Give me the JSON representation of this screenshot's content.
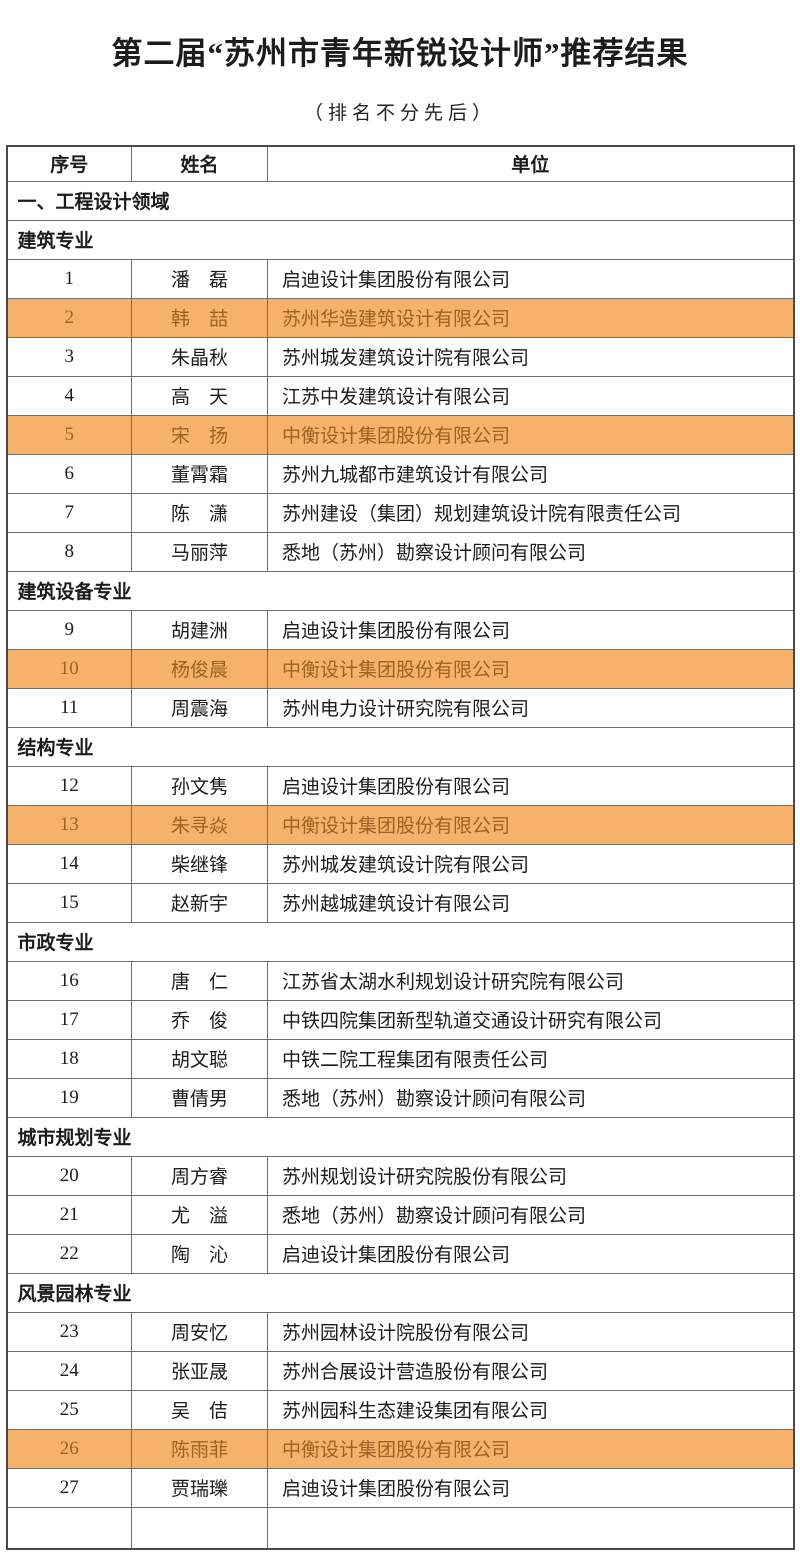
{
  "page": {
    "title": "第二届“苏州市青年新锐设计师”推荐结果",
    "subtitle": "（排名不分先后）"
  },
  "colors": {
    "highlight_bg": "#F6B26B",
    "highlight_text": "#9e6225",
    "border": "#6e6e6e",
    "outer_border": "#4a4a4a"
  },
  "table": {
    "headers": [
      "序号",
      "姓名",
      "单位"
    ],
    "rows": [
      {
        "kind": "section",
        "level": "category",
        "label": "一、工程设计领域"
      },
      {
        "kind": "section",
        "level": "group",
        "label": "建筑专业"
      },
      {
        "kind": "data",
        "no": "1",
        "name": "潘　磊",
        "org": "启迪设计集团股份有限公司",
        "highlight": false
      },
      {
        "kind": "data",
        "no": "2",
        "name": "韩　喆",
        "org": "苏州华造建筑设计有限公司",
        "highlight": true
      },
      {
        "kind": "data",
        "no": "3",
        "name": "朱晶秋",
        "org": "苏州城发建筑设计院有限公司",
        "highlight": false
      },
      {
        "kind": "data",
        "no": "4",
        "name": "高　天",
        "org": "江苏中发建筑设计有限公司",
        "highlight": false
      },
      {
        "kind": "data",
        "no": "5",
        "name": "宋　扬",
        "org": "中衡设计集团股份有限公司",
        "highlight": true
      },
      {
        "kind": "data",
        "no": "6",
        "name": "董霄霜",
        "org": "苏州九城都市建筑设计有限公司",
        "highlight": false
      },
      {
        "kind": "data",
        "no": "7",
        "name": "陈　潇",
        "org": "苏州建设（集团）规划建筑设计院有限责任公司",
        "highlight": false
      },
      {
        "kind": "data",
        "no": "8",
        "name": "马丽萍",
        "org": "悉地（苏州）勘察设计顾问有限公司",
        "highlight": false
      },
      {
        "kind": "section",
        "level": "group",
        "label": "建筑设备专业"
      },
      {
        "kind": "data",
        "no": "9",
        "name": "胡建洲",
        "org": "启迪设计集团股份有限公司",
        "highlight": false
      },
      {
        "kind": "data",
        "no": "10",
        "name": "杨俊晨",
        "org": "中衡设计集团股份有限公司",
        "highlight": true
      },
      {
        "kind": "data",
        "no": "11",
        "name": "周震海",
        "org": "苏州电力设计研究院有限公司",
        "highlight": false
      },
      {
        "kind": "section",
        "level": "group",
        "label": "结构专业"
      },
      {
        "kind": "data",
        "no": "12",
        "name": "孙文隽",
        "org": "启迪设计集团股份有限公司",
        "highlight": false
      },
      {
        "kind": "data",
        "no": "13",
        "name": "朱寻焱",
        "org": "中衡设计集团股份有限公司",
        "highlight": true
      },
      {
        "kind": "data",
        "no": "14",
        "name": "柴继锋",
        "org": "苏州城发建筑设计院有限公司",
        "highlight": false
      },
      {
        "kind": "data",
        "no": "15",
        "name": "赵新宇",
        "org": "苏州越城建筑设计有限公司",
        "highlight": false
      },
      {
        "kind": "section",
        "level": "group",
        "label": "市政专业"
      },
      {
        "kind": "data",
        "no": "16",
        "name": "唐　仁",
        "org": "江苏省太湖水利规划设计研究院有限公司",
        "highlight": false
      },
      {
        "kind": "data",
        "no": "17",
        "name": "乔　俊",
        "org": "中铁四院集团新型轨道交通设计研究有限公司",
        "highlight": false
      },
      {
        "kind": "data",
        "no": "18",
        "name": "胡文聪",
        "org": "中铁二院工程集团有限责任公司",
        "highlight": false
      },
      {
        "kind": "data",
        "no": "19",
        "name": "曹倩男",
        "org": "悉地（苏州）勘察设计顾问有限公司",
        "highlight": false
      },
      {
        "kind": "section",
        "level": "group",
        "label": "城市规划专业"
      },
      {
        "kind": "data",
        "no": "20",
        "name": "周方睿",
        "org": "苏州规划设计研究院股份有限公司",
        "highlight": false
      },
      {
        "kind": "data",
        "no": "21",
        "name": "尤　溢",
        "org": "悉地（苏州）勘察设计顾问有限公司",
        "highlight": false
      },
      {
        "kind": "data",
        "no": "22",
        "name": "陶　沁",
        "org": "启迪设计集团股份有限公司",
        "highlight": false
      },
      {
        "kind": "section",
        "level": "group",
        "label": "风景园林专业"
      },
      {
        "kind": "data",
        "no": "23",
        "name": "周安忆",
        "org": "苏州园林设计院股份有限公司",
        "highlight": false
      },
      {
        "kind": "data",
        "no": "24",
        "name": "张亚晟",
        "org": "苏州合展设计营造股份有限公司",
        "highlight": false
      },
      {
        "kind": "data",
        "no": "25",
        "name": "吴　佶",
        "org": "苏州园科生态建设集团有限公司",
        "highlight": false
      },
      {
        "kind": "data",
        "no": "26",
        "name": "陈雨菲",
        "org": "中衡设计集团股份有限公司",
        "highlight": true
      },
      {
        "kind": "data",
        "no": "27",
        "name": "贾瑞瓅",
        "org": "启迪设计集团股份有限公司",
        "highlight": false
      }
    ]
  }
}
